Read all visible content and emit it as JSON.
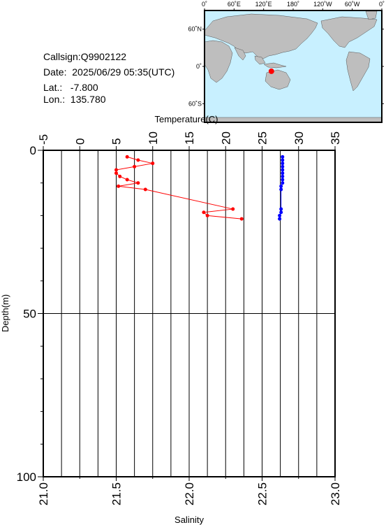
{
  "info": {
    "callsign": "Callsign:Q9902122",
    "date": "Date:  2025/06/29 05:35(UTC)",
    "lat": "Lat.:   -7.800",
    "lon": "Lon.:  135.780"
  },
  "map": {
    "top_labels": [
      "0˚",
      "60˚E",
      "120˚E",
      "180˚",
      "120˚W",
      "60˚W",
      "0˚"
    ],
    "side_labels": [
      "60˚N",
      "0˚",
      "60˚S"
    ],
    "ocean_color": "#c8f0ff",
    "land_color": "#bebebe",
    "marker": {
      "lat": -7.8,
      "lon": 135.78,
      "color": "#ff0000"
    }
  },
  "chart_data": {
    "type": "line",
    "top_axis": {
      "label": "Temperature(C)",
      "range": [
        -5,
        35
      ],
      "ticks": [
        -5,
        0,
        5,
        10,
        15,
        20,
        25,
        30,
        35
      ]
    },
    "bottom_axis": {
      "label": "Salinity",
      "range": [
        21.0,
        23.0
      ],
      "ticks": [
        "21.0",
        "21.5",
        "22.0",
        "22.5",
        "23.0"
      ]
    },
    "y_axis": {
      "label": "Depth(m)",
      "range": [
        0,
        100
      ],
      "inverted": true,
      "ticks": [
        0,
        50,
        100
      ]
    },
    "grid": true,
    "series": [
      {
        "axis": "top",
        "color": "#ff0000",
        "points": [
          {
            "x": 6.5,
            "y": 2
          },
          {
            "x": 8.0,
            "y": 3
          },
          {
            "x": 10.0,
            "y": 4
          },
          {
            "x": 7.5,
            "y": 5
          },
          {
            "x": 5.0,
            "y": 6
          },
          {
            "x": 5.0,
            "y": 7
          },
          {
            "x": 5.5,
            "y": 8
          },
          {
            "x": 6.5,
            "y": 9
          },
          {
            "x": 8.0,
            "y": 10
          },
          {
            "x": 5.3,
            "y": 11
          },
          {
            "x": 9.0,
            "y": 12
          },
          {
            "x": 21.0,
            "y": 18
          },
          {
            "x": 17.0,
            "y": 19
          },
          {
            "x": 17.5,
            "y": 20
          },
          {
            "x": 22.2,
            "y": 21
          }
        ]
      },
      {
        "axis": "bottom",
        "color": "#0000ff",
        "points": [
          {
            "x": 22.64,
            "y": 2
          },
          {
            "x": 22.64,
            "y": 3
          },
          {
            "x": 22.64,
            "y": 4
          },
          {
            "x": 22.64,
            "y": 5
          },
          {
            "x": 22.64,
            "y": 6
          },
          {
            "x": 22.64,
            "y": 7
          },
          {
            "x": 22.64,
            "y": 8
          },
          {
            "x": 22.64,
            "y": 9
          },
          {
            "x": 22.64,
            "y": 10
          },
          {
            "x": 22.63,
            "y": 11
          },
          {
            "x": 22.63,
            "y": 12
          },
          {
            "x": 22.63,
            "y": 18
          },
          {
            "x": 22.63,
            "y": 19
          },
          {
            "x": 22.62,
            "y": 20
          },
          {
            "x": 22.62,
            "y": 21
          }
        ]
      }
    ]
  }
}
